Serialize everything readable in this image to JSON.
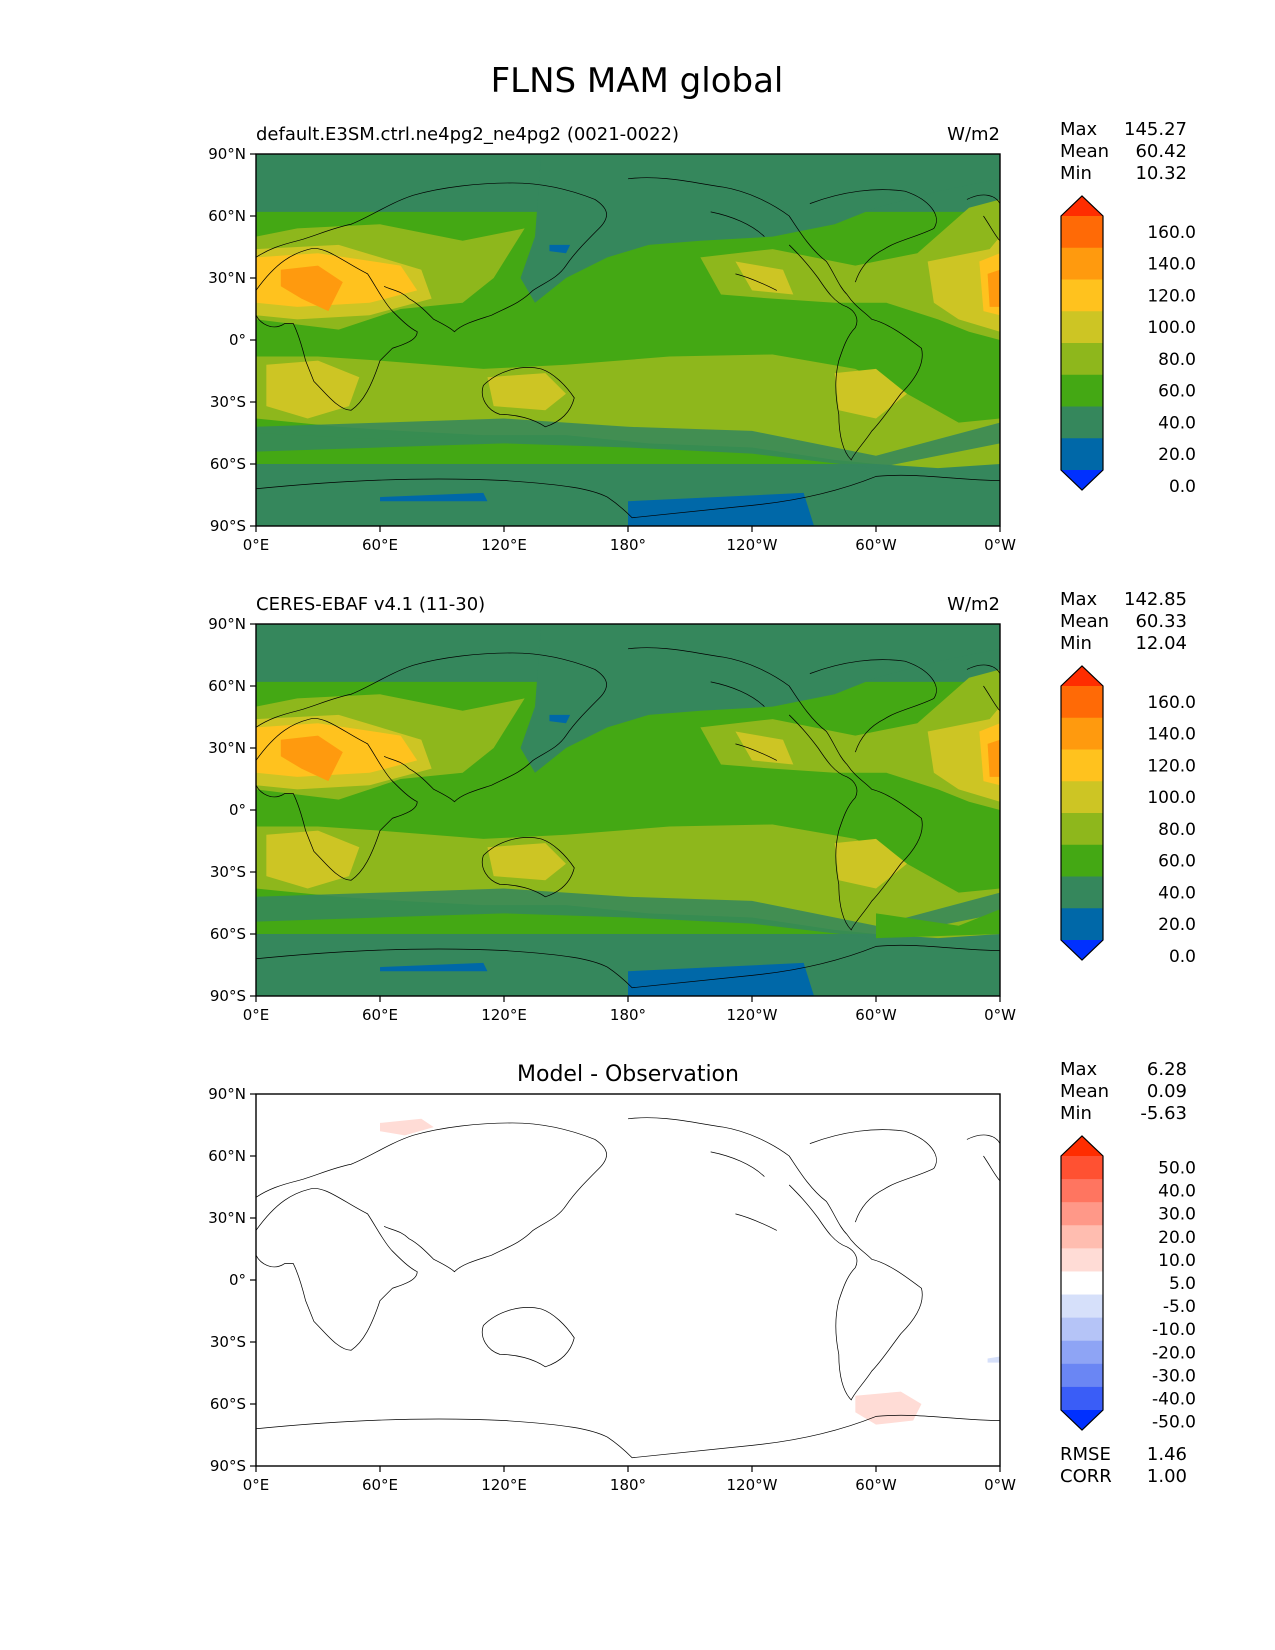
{
  "figure": {
    "title": "FLNS MAM global"
  },
  "colors": {
    "abs_levels": [
      "#0030ff",
      "#0068a8",
      "#35875c",
      "#44a814",
      "#8eb71c",
      "#cdc524",
      "#ffc21e",
      "#ff9a0e",
      "#ff6a06",
      "#ff2d00"
    ],
    "diff_levels": [
      "#0030ff",
      "#3a5df7",
      "#6a86f4",
      "#8ea4f5",
      "#b5c4f7",
      "#d6e0fa",
      "#ffffff",
      "#ffdcd6",
      "#ffbdb0",
      "#ff9888",
      "#ff7560",
      "#ff5132",
      "#ff2d00"
    ],
    "coast": "#000000"
  },
  "chart_data": [
    {
      "type": "heatmap",
      "name": "test",
      "title_left": "default.E3SM.ctrl.ne4pg2_ne4pg2 (0021-0022)",
      "title_right": "W/m2",
      "xlim": [
        0,
        360
      ],
      "ylim": [
        -90,
        90
      ],
      "xticks": [
        "0°E",
        "60°E",
        "120°E",
        "180°",
        "120°W",
        "60°W",
        "0°W"
      ],
      "yticks": [
        "90°N",
        "60°N",
        "30°N",
        "0°",
        "30°S",
        "60°S",
        "90°S"
      ],
      "stats": {
        "labels": [
          "Max",
          "Mean",
          "Min"
        ],
        "values": [
          "145.27",
          "60.42",
          "10.32"
        ]
      },
      "colorbar": {
        "labels": [
          "160.0",
          "140.0",
          "120.0",
          "100.0",
          "80.0",
          "60.0",
          "40.0",
          "20.0",
          "0.0"
        ],
        "levels": [
          0,
          20,
          40,
          60,
          80,
          100,
          120,
          140,
          160
        ],
        "extend": "both"
      },
      "grid": false
    },
    {
      "type": "heatmap",
      "name": "reference",
      "title_left": "CERES-EBAF v4.1 (11-30)",
      "title_right": "W/m2",
      "xlim": [
        0,
        360
      ],
      "ylim": [
        -90,
        90
      ],
      "xticks": [
        "0°E",
        "60°E",
        "120°E",
        "180°",
        "120°W",
        "60°W",
        "0°W"
      ],
      "yticks": [
        "90°N",
        "60°N",
        "30°N",
        "0°",
        "30°S",
        "60°S",
        "90°S"
      ],
      "stats": {
        "labels": [
          "Max",
          "Mean",
          "Min"
        ],
        "values": [
          "142.85",
          "60.33",
          "12.04"
        ]
      },
      "colorbar": {
        "labels": [
          "160.0",
          "140.0",
          "120.0",
          "100.0",
          "80.0",
          "60.0",
          "40.0",
          "20.0",
          "0.0"
        ],
        "levels": [
          0,
          20,
          40,
          60,
          80,
          100,
          120,
          140,
          160
        ],
        "extend": "both"
      },
      "grid": false
    },
    {
      "type": "heatmap",
      "name": "difference",
      "title_center": "Model - Observation",
      "xlim": [
        0,
        360
      ],
      "ylim": [
        -90,
        90
      ],
      "xticks": [
        "0°E",
        "60°E",
        "120°E",
        "180°",
        "120°W",
        "60°W",
        "0°W"
      ],
      "yticks": [
        "90°N",
        "60°N",
        "30°N",
        "0°",
        "30°S",
        "60°S",
        "90°S"
      ],
      "stats": {
        "labels": [
          "Max",
          "Mean",
          "Min"
        ],
        "values": [
          "6.28",
          "0.09",
          "-5.63"
        ]
      },
      "colorbar": {
        "labels": [
          "50.0",
          "40.0",
          "30.0",
          "20.0",
          "10.0",
          "5.0",
          "-5.0",
          "-10.0",
          "-20.0",
          "-30.0",
          "-40.0",
          "-50.0"
        ],
        "levels": [
          -50,
          -40,
          -30,
          -20,
          -10,
          -5,
          5,
          10,
          20,
          30,
          40,
          50
        ],
        "extend": "both"
      },
      "metrics": {
        "labels": [
          "RMSE",
          "CORR"
        ],
        "values": [
          "1.46",
          "1.00"
        ]
      },
      "grid": false
    }
  ]
}
